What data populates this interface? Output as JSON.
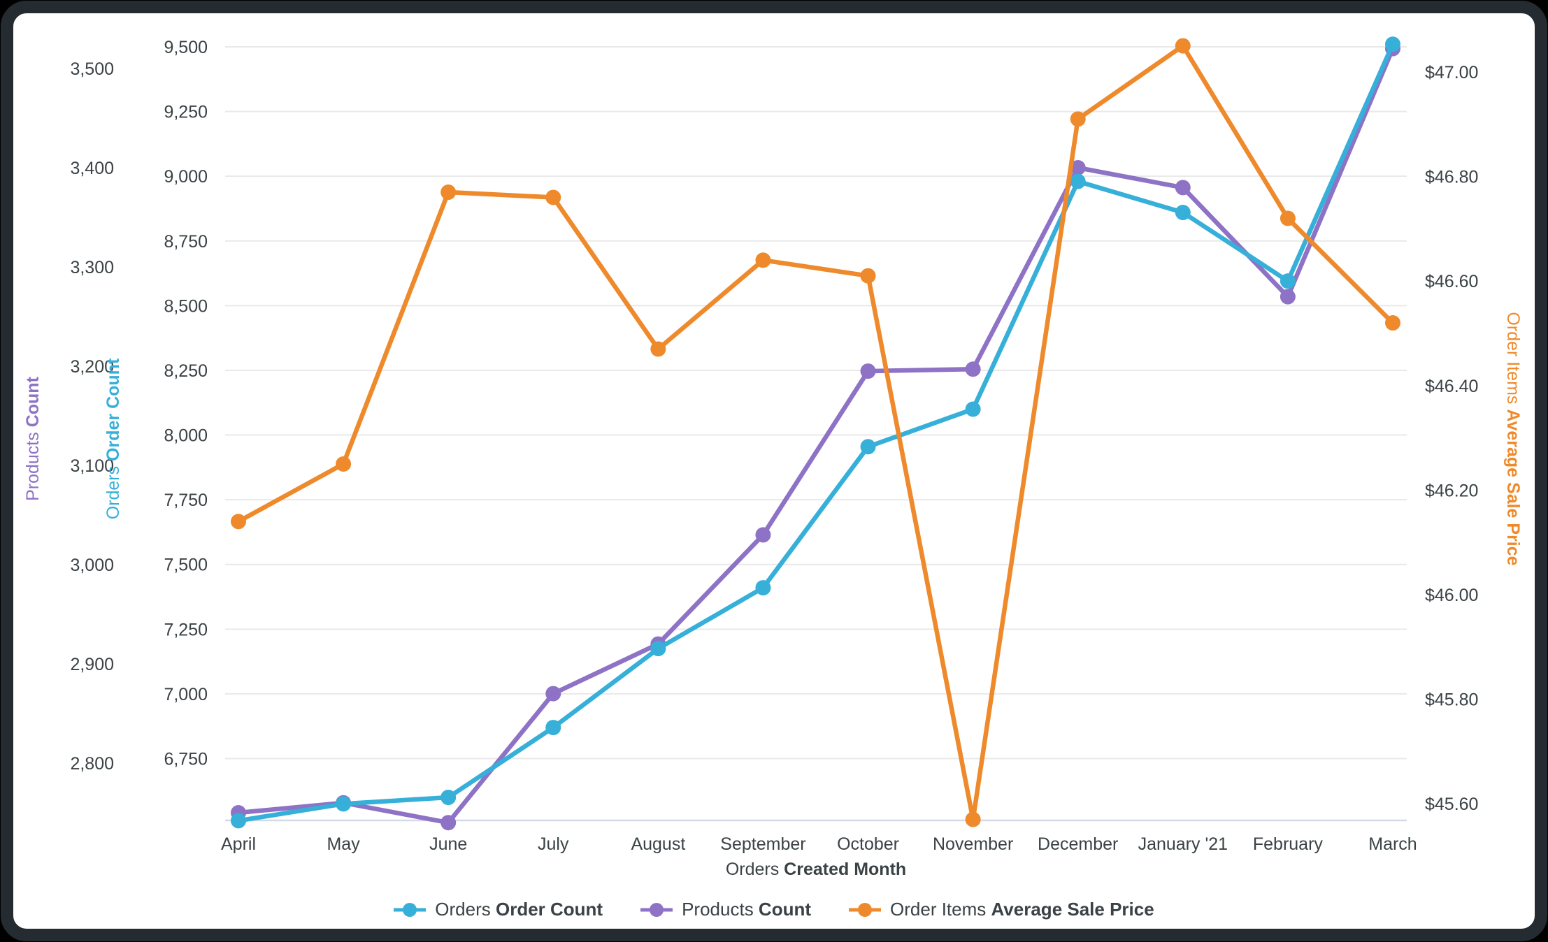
{
  "chart_data": {
    "type": "line",
    "title": "",
    "x_axis": {
      "title": {
        "view": "Orders",
        "field": "Created Month"
      },
      "categories": [
        "April",
        "May",
        "June",
        "July",
        "August",
        "September",
        "October",
        "November",
        "December",
        "January '21",
        "February",
        "March"
      ]
    },
    "y_axes": [
      {
        "id": "products_count",
        "side": "left",
        "order": "outer",
        "title": {
          "view": "Products",
          "field": "Count"
        },
        "color": "#8e72c5",
        "tick_format": "number",
        "tick_values": [
          2800,
          2900,
          3000,
          3100,
          3200,
          3300,
          3400,
          3500
        ]
      },
      {
        "id": "orders_order_count",
        "side": "left",
        "order": "inner",
        "title": {
          "view": "Orders",
          "field": "Order Count"
        },
        "color": "#36afd9",
        "tick_format": "number",
        "gridlines": true,
        "tick_values": [
          6750,
          7000,
          7250,
          7500,
          7750,
          8000,
          8250,
          8500,
          8750,
          9000,
          9250,
          9500
        ]
      },
      {
        "id": "order_items_avg_sale_price",
        "side": "right",
        "order": "outer",
        "title": {
          "view": "Order Items",
          "field": "Average Sale Price"
        },
        "color": "#ee8a2b",
        "tick_format": "currency",
        "tick_values": [
          45.6,
          45.8,
          46.0,
          46.2,
          46.4,
          46.6,
          46.8,
          47.0
        ]
      }
    ],
    "series": [
      {
        "id": "orders_order_count_series",
        "name": {
          "view": "Orders",
          "field": "Order Count"
        },
        "axis": "orders_order_count",
        "color": "#36afd9",
        "values": [
          6510,
          6575,
          6600,
          6870,
          7175,
          7410,
          7955,
          8100,
          8980,
          8860,
          8595,
          9510
        ]
      },
      {
        "id": "products_count_series",
        "name": {
          "view": "Products",
          "field": "Count"
        },
        "axis": "products_count",
        "color": "#8e72c5",
        "values": [
          2750,
          2760,
          2740,
          2870,
          2920,
          3030,
          3195,
          3197,
          3400,
          3380,
          3270,
          3520
        ]
      },
      {
        "id": "order_items_avg_sale_price_series",
        "name": {
          "view": "Order Items",
          "field": "Average Sale Price"
        },
        "axis": "order_items_avg_sale_price",
        "color": "#ee8a2b",
        "values": [
          46.14,
          46.25,
          46.77,
          46.76,
          46.47,
          46.64,
          46.61,
          45.57,
          46.91,
          47.05,
          46.72,
          46.52
        ]
      }
    ],
    "legend": {
      "position": "bottom"
    },
    "grid": true,
    "colors": {
      "background": "#ffffff",
      "frame": "#242b31",
      "gridline": "#e9e9e9",
      "baseline": "#d3dae6",
      "tick_text": "#3a4245"
    }
  }
}
